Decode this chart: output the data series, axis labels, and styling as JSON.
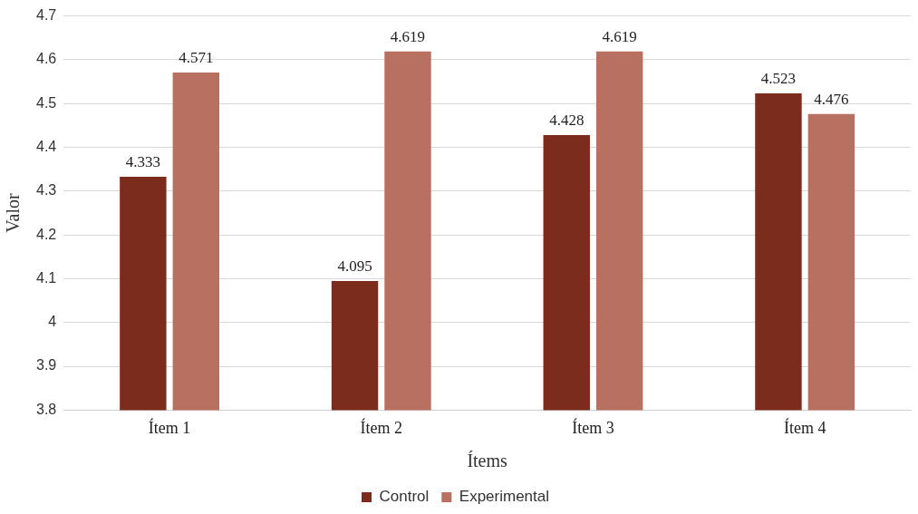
{
  "chart_data": {
    "type": "bar",
    "xlabel": "Ítems",
    "ylabel": "Valor",
    "categories": [
      "Ítem 1",
      "Ítem 2",
      "Ítem 3",
      "Ítem 4"
    ],
    "series": [
      {
        "name": "Control",
        "color": "#7b2c1c",
        "values": [
          4.333,
          4.095,
          4.428,
          4.523
        ]
      },
      {
        "name": "Experimental",
        "color": "#b87060",
        "values": [
          4.571,
          4.619,
          4.619,
          4.476
        ]
      }
    ],
    "ylim": [
      3.8,
      4.7
    ],
    "yticks": [
      3.8,
      3.9,
      4,
      4.1,
      4.2,
      4.3,
      4.4,
      4.5,
      4.6,
      4.7
    ],
    "grid": "y",
    "legend": "bottom",
    "data_labels": true
  }
}
